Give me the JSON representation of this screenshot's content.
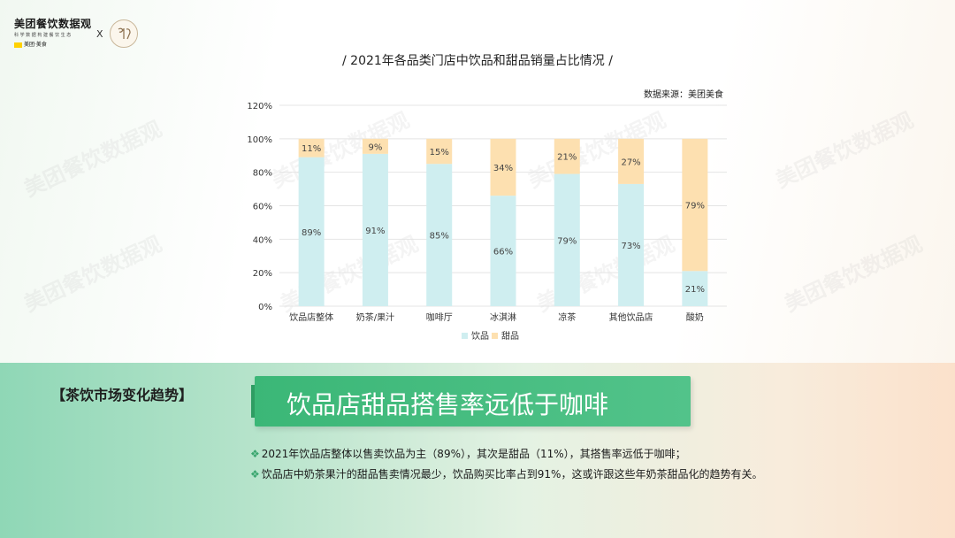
{
  "logo": {
    "title": "美团餐饮数据观",
    "subtitle": "科 学 数 据 构 建 餐 饮 生 态",
    "brand": "美团·美食",
    "cross": "X",
    "watermark": "美团餐饮数据观"
  },
  "chart_data": {
    "type": "bar",
    "stacked": true,
    "title": "/ 2021年各品类门店中饮品和甜品销量占比情况 /",
    "source": "数据来源：美团美食",
    "categories": [
      "饮品店整体",
      "奶茶/果汁",
      "咖啡厅",
      "冰淇淋",
      "凉茶",
      "其他饮品店",
      "酸奶"
    ],
    "series": [
      {
        "name": "饮品",
        "color": "#cfeef0",
        "values": [
          89,
          91,
          85,
          66,
          79,
          73,
          21
        ],
        "labels": [
          "89%",
          "91%",
          "85%",
          "66%",
          "79%",
          "73%",
          "21%"
        ]
      },
      {
        "name": "甜品",
        "color": "#fde0b0",
        "values": [
          11,
          9,
          15,
          34,
          21,
          27,
          79
        ],
        "labels": [
          "11%",
          "9%",
          "15%",
          "34%",
          "21%",
          "27%",
          "79%"
        ]
      }
    ],
    "y_ticks": [
      "0%",
      "20%",
      "40%",
      "60%",
      "80%",
      "100%",
      "120%"
    ],
    "ylim": [
      0,
      120
    ],
    "grid": true,
    "legend_position": "bottom"
  },
  "section": {
    "tag": "【茶饮市场变化趋势】",
    "headline": "饮品店甜品搭售率远低于咖啡"
  },
  "bullets": {
    "mark": "❖",
    "items": [
      "2021年饮品店整体以售卖饮品为主（89%），其次是甜品（11%），其搭售率远低于咖啡；",
      "饮品店中奶茶果汁的甜品售卖情况最少，饮品购买比率占到91%，这或许跟这些年奶茶甜品化的趋势有关。"
    ]
  }
}
